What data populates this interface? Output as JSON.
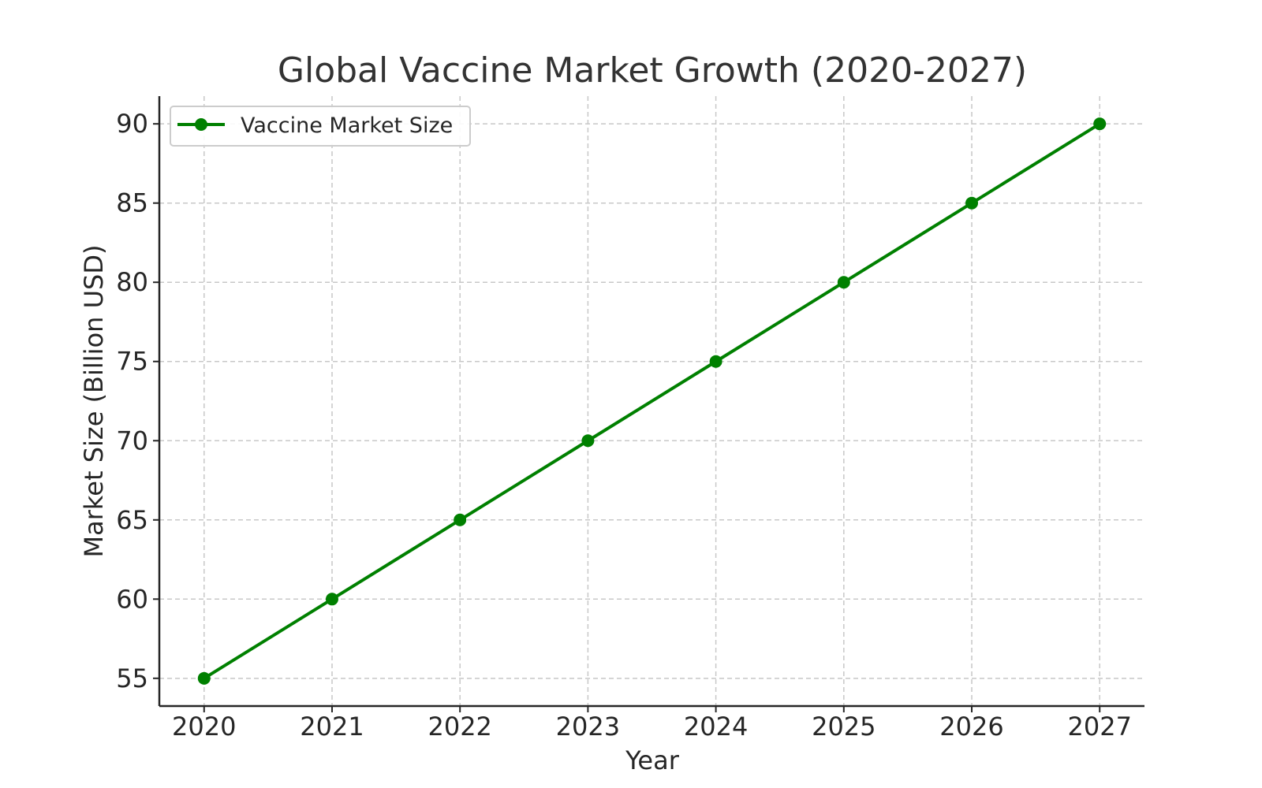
{
  "chart_data": {
    "type": "line",
    "title": "Global Vaccine Market Growth (2020-2027)",
    "xlabel": "Year",
    "ylabel": "Market Size (Billion USD)",
    "x": [
      2020,
      2021,
      2022,
      2023,
      2024,
      2025,
      2026,
      2027
    ],
    "x_tick_labels": [
      "2020",
      "2021",
      "2022",
      "2023",
      "2024",
      "2025",
      "2026",
      "2027"
    ],
    "y_ticks": [
      55,
      60,
      65,
      70,
      75,
      80,
      85,
      90
    ],
    "y_tick_labels": [
      "55",
      "60",
      "65",
      "70",
      "75",
      "80",
      "85",
      "90"
    ],
    "xlim": [
      2019.65,
      2027.35
    ],
    "ylim": [
      53.25,
      91.75
    ],
    "grid": true,
    "legend_position": "top-left",
    "series": [
      {
        "name": "Vaccine Market Size",
        "values": [
          55,
          60,
          65,
          70,
          75,
          80,
          85,
          90
        ],
        "color": "#008000",
        "marker": "circle"
      }
    ]
  }
}
